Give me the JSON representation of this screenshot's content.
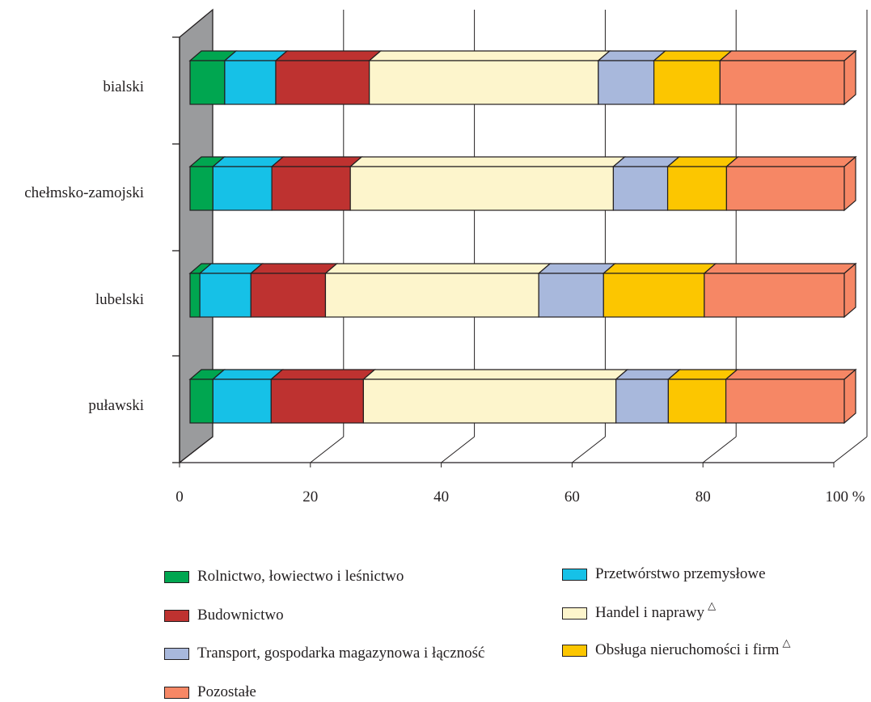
{
  "chart_data": {
    "type": "bar",
    "orientation": "horizontal",
    "stacked": true,
    "percent": true,
    "categories": [
      "bialski",
      "chełmsko-zamojski",
      "lubelski",
      "puławski"
    ],
    "series": [
      {
        "name": "Rolnictwo, łowiectwo i leśnictwo",
        "color": "#00a650",
        "values": [
          5.3,
          3.5,
          1.5,
          3.5
        ]
      },
      {
        "name": "Przetwórstwo przemysłowe",
        "color": "#16c1e7",
        "values": [
          7.8,
          9.0,
          7.8,
          8.9
        ]
      },
      {
        "name": "Budownictwo",
        "color": "#be3230",
        "values": [
          14.3,
          12.0,
          11.4,
          14.1
        ]
      },
      {
        "name": "Handel i naprawy",
        "marker": "△",
        "color": "#fdf5cc",
        "values": [
          35.0,
          40.2,
          32.6,
          38.6
        ]
      },
      {
        "name": "Transport, gospodarka magazynowa i łączność",
        "color": "#a8b8dc",
        "values": [
          8.5,
          8.3,
          9.9,
          8.0
        ]
      },
      {
        "name": "Obsługa nieruchomości i firm",
        "marker": "△",
        "color": "#fcc600",
        "values": [
          10.1,
          9.0,
          15.4,
          8.8
        ]
      },
      {
        "name": "Pozostałe",
        "color": "#f68765",
        "values": [
          19.0,
          18.0,
          21.4,
          18.1
        ]
      }
    ],
    "xticks": [
      "0",
      "20",
      "40",
      "60",
      "80",
      "100 %"
    ],
    "xlim": [
      0,
      100
    ],
    "grid": true,
    "legend_position": "bottom",
    "wall_color": "#9a9b9d"
  }
}
